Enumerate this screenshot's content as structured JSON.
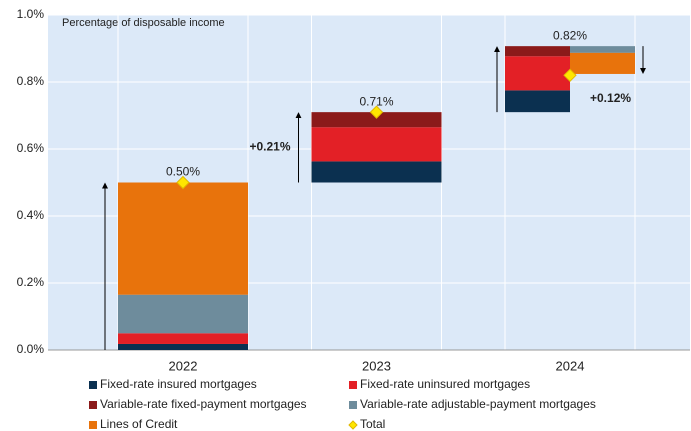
{
  "chart_data": {
    "type": "waterfall",
    "subtitle": "Percentage of disposable income",
    "categories": [
      "2022",
      "2023",
      "2024"
    ],
    "series": [
      {
        "name": "Fixed-rate insured mortgages",
        "color": "#0b3050",
        "values": [
          0.018,
          0.063,
          0.065
        ]
      },
      {
        "name": "Fixed-rate uninsured mortgages",
        "color": "#e32026",
        "values": [
          0.032,
          0.102,
          0.102
        ]
      },
      {
        "name": "Variable-rate fixed-payment mortgages",
        "color": "#8b1a1a",
        "values": [
          0,
          0.045,
          0.03
        ]
      },
      {
        "name": "Variable-rate adjustable-payment mortgages",
        "color": "#6e8c9c",
        "values": [
          0.115,
          0,
          -0.02
        ]
      },
      {
        "name": "Lines of Credit",
        "color": "#e8730c",
        "values": [
          0.335,
          0,
          -0.063
        ]
      }
    ],
    "total": {
      "name": "Total",
      "color": "#ffe600",
      "values": [
        0.5,
        0.71,
        0.82
      ],
      "value_labels": [
        "0.50%",
        "0.71%",
        "0.82%"
      ]
    },
    "annotations": [
      "+0.21%",
      "+0.12%"
    ],
    "ylim": [
      0,
      1.0
    ],
    "yticks": [
      {
        "value": 0,
        "label": "0.0%"
      },
      {
        "value": 0.2,
        "label": "0.2%"
      },
      {
        "value": 0.4,
        "label": "0.4%"
      },
      {
        "value": 0.6,
        "label": "0.6%"
      },
      {
        "value": 0.8,
        "label": "0.8%"
      },
      {
        "value": 1.0,
        "label": "1.0%"
      }
    ],
    "grid": true
  }
}
